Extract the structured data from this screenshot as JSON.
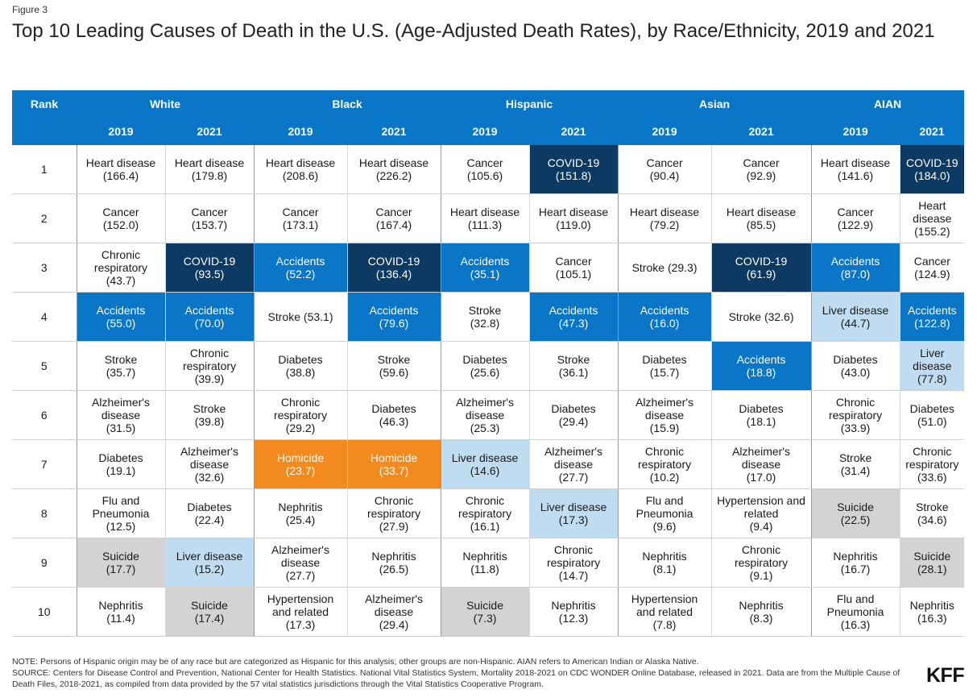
{
  "figure_label": "Figure 3",
  "title": "Top 10 Leading Causes of Death in the U.S. (Age-Adjusted Death Rates), by Race/Ethnicity, 2019 and 2021",
  "colors": {
    "header": "#0a76c8",
    "covid": "#0d3a62",
    "accidents": "#0a76c8",
    "homicide": "#f28a1e",
    "liver": "#bfdcf0",
    "suicide": "#d3d3d3"
  },
  "chart_data": {
    "type": "table",
    "rank_header": "Rank",
    "groups": [
      "White",
      "Black",
      "Hispanic",
      "Asian",
      "AIAN"
    ],
    "years": [
      "2019",
      "2021"
    ],
    "ranks": [
      "1",
      "2",
      "3",
      "4",
      "5",
      "6",
      "7",
      "8",
      "9",
      "10"
    ],
    "rows": [
      [
        {
          "label": "Heart disease",
          "value": "(166.4)"
        },
        {
          "label": "Heart disease",
          "value": "(179.8)"
        },
        {
          "label": "Heart disease",
          "value": "(208.6)"
        },
        {
          "label": "Heart disease",
          "value": "(226.2)"
        },
        {
          "label": "Cancer",
          "value": "(105.6)"
        },
        {
          "label": "COVID-19",
          "value": "(151.8)",
          "hl": "covid"
        },
        {
          "label": "Cancer",
          "value": "(90.4)"
        },
        {
          "label": "Cancer",
          "value": "(92.9)"
        },
        {
          "label": "Heart disease",
          "value": "(141.6)"
        },
        {
          "label": "COVID-19",
          "value": "(184.0)",
          "hl": "covid"
        }
      ],
      [
        {
          "label": "Cancer",
          "value": "(152.0)"
        },
        {
          "label": "Cancer",
          "value": "(153.7)"
        },
        {
          "label": "Cancer",
          "value": "(173.1)"
        },
        {
          "label": "Cancer",
          "value": "(167.4)"
        },
        {
          "label": "Heart disease",
          "value": "(111.3)"
        },
        {
          "label": "Heart disease",
          "value": "(119.0)"
        },
        {
          "label": "Heart disease",
          "value": "(79.2)"
        },
        {
          "label": "Heart disease",
          "value": "(85.5)"
        },
        {
          "label": "Cancer",
          "value": "(122.9)"
        },
        {
          "label": "Heart disease",
          "value": "(155.2)"
        }
      ],
      [
        {
          "label": "Chronic respiratory",
          "value": "(43.7)"
        },
        {
          "label": "COVID-19",
          "value": "(93.5)",
          "hl": "covid"
        },
        {
          "label": "Accidents",
          "value": "(52.2)",
          "hl": "acc"
        },
        {
          "label": "COVID-19",
          "value": "(136.4)",
          "hl": "covid"
        },
        {
          "label": "Accidents",
          "value": "(35.1)",
          "hl": "acc"
        },
        {
          "label": "Cancer",
          "value": "(105.1)"
        },
        {
          "label": "Stroke",
          "value": "(29.3)",
          "inline": true
        },
        {
          "label": "COVID-19",
          "value": "(61.9)",
          "hl": "covid"
        },
        {
          "label": "Accidents",
          "value": "(87.0)",
          "hl": "acc"
        },
        {
          "label": "Cancer",
          "value": "(124.9)"
        }
      ],
      [
        {
          "label": "Accidents",
          "value": "(55.0)",
          "hl": "acc"
        },
        {
          "label": "Accidents",
          "value": "(70.0)",
          "hl": "acc"
        },
        {
          "label": "Stroke",
          "value": "(53.1)",
          "inline": true
        },
        {
          "label": "Accidents",
          "value": "(79.6)",
          "hl": "acc"
        },
        {
          "label": "Stroke",
          "value": "(32.8)"
        },
        {
          "label": "Accidents",
          "value": "(47.3)",
          "hl": "acc"
        },
        {
          "label": "Accidents",
          "value": "(16.0)",
          "hl": "acc"
        },
        {
          "label": "Stroke",
          "value": "(32.6)",
          "inline": true
        },
        {
          "label": "Liver disease",
          "value": "(44.7)",
          "hl": "liver"
        },
        {
          "label": "Accidents",
          "value": "(122.8)",
          "hl": "acc"
        }
      ],
      [
        {
          "label": "Stroke",
          "value": "(35.7)"
        },
        {
          "label": "Chronic respiratory",
          "value": "(39.9)"
        },
        {
          "label": "Diabetes",
          "value": "(38.8)"
        },
        {
          "label": "Stroke",
          "value": "(59.6)"
        },
        {
          "label": "Diabetes",
          "value": "(25.6)"
        },
        {
          "label": "Stroke",
          "value": "(36.1)"
        },
        {
          "label": "Diabetes",
          "value": "(15.7)"
        },
        {
          "label": "Accidents",
          "value": "(18.8)",
          "hl": "acc"
        },
        {
          "label": "Diabetes",
          "value": "(43.0)"
        },
        {
          "label": "Liver disease",
          "value": "(77.8)",
          "hl": "liver"
        }
      ],
      [
        {
          "label": "Alzheimer's disease",
          "value": "(31.5)"
        },
        {
          "label": "Stroke",
          "value": "(39.8)"
        },
        {
          "label": "Chronic respiratory",
          "value": "(29.2)"
        },
        {
          "label": "Diabetes",
          "value": "(46.3)"
        },
        {
          "label": "Alzheimer's disease",
          "value": "(25.3)"
        },
        {
          "label": "Diabetes",
          "value": "(29.4)"
        },
        {
          "label": "Alzheimer's disease",
          "value": "(15.9)"
        },
        {
          "label": "Diabetes",
          "value": "(18.1)"
        },
        {
          "label": "Chronic respiratory",
          "value": "(33.9)"
        },
        {
          "label": "Diabetes",
          "value": "(51.0)"
        }
      ],
      [
        {
          "label": "Diabetes",
          "value": "(19.1)"
        },
        {
          "label": "Alzheimer's disease",
          "value": "(32.6)"
        },
        {
          "label": "Homicide",
          "value": "(23.7)",
          "hl": "hom"
        },
        {
          "label": "Homicide",
          "value": "(33.7)",
          "hl": "hom"
        },
        {
          "label": "Liver disease",
          "value": "(14.6)",
          "hl": "liver"
        },
        {
          "label": "Alzheimer's disease",
          "value": "(27.7)"
        },
        {
          "label": "Chronic respiratory",
          "value": "(10.2)"
        },
        {
          "label": "Alzheimer's disease",
          "value": "(17.0)"
        },
        {
          "label": "Stroke",
          "value": "(31.4)"
        },
        {
          "label": "Chronic respiratory",
          "value": "(33.6)"
        }
      ],
      [
        {
          "label": "Flu and Pneumonia",
          "value": "(12.5)"
        },
        {
          "label": "Diabetes",
          "value": "(22.4)"
        },
        {
          "label": "Nephritis",
          "value": "(25.4)"
        },
        {
          "label": "Chronic respiratory",
          "value": "(27.9)"
        },
        {
          "label": "Chronic respiratory",
          "value": "(16.1)"
        },
        {
          "label": "Liver disease",
          "value": "(17.3)",
          "hl": "liver"
        },
        {
          "label": "Flu and Pneumonia",
          "value": "(9.6)"
        },
        {
          "label": "Hypertension and related",
          "value": "(9.4)"
        },
        {
          "label": "Suicide",
          "value": "(22.5)",
          "hl": "suicide"
        },
        {
          "label": "Stroke",
          "value": "(34.6)"
        }
      ],
      [
        {
          "label": "Suicide",
          "value": "(17.7)",
          "hl": "suicide"
        },
        {
          "label": "Liver disease",
          "value": "(15.2)",
          "hl": "liver"
        },
        {
          "label": "Alzheimer's disease",
          "value": "(27.7)"
        },
        {
          "label": "Nephritis",
          "value": "(26.5)"
        },
        {
          "label": "Nephritis",
          "value": "(11.8)"
        },
        {
          "label": "Chronic respiratory",
          "value": "(14.7)"
        },
        {
          "label": "Nephritis",
          "value": "(8.1)"
        },
        {
          "label": "Chronic respiratory",
          "value": "(9.1)"
        },
        {
          "label": "Nephritis",
          "value": "(16.7)"
        },
        {
          "label": "Suicide",
          "value": "(28.1)",
          "hl": "suicide"
        }
      ],
      [
        {
          "label": "Nephritis",
          "value": "(11.4)"
        },
        {
          "label": "Suicide",
          "value": "(17.4)",
          "hl": "suicide"
        },
        {
          "label": "Hypertension and related",
          "value": "(17.3)"
        },
        {
          "label": "Alzheimer's disease",
          "value": "(29.4)"
        },
        {
          "label": "Suicide",
          "value": "(7.3)",
          "hl": "suicide"
        },
        {
          "label": "Nephritis",
          "value": "(12.3)"
        },
        {
          "label": "Hypertension and related",
          "value": "(7.8)"
        },
        {
          "label": "Nephritis",
          "value": "(8.3)"
        },
        {
          "label": "Flu and Pneumonia",
          "value": "(16.3)"
        },
        {
          "label": "Nephritis",
          "value": "(16.3)"
        }
      ]
    ]
  },
  "notes": {
    "note": "NOTE: Persons of Hispanic origin may be of any race but are categorized as Hispanic for this analysis; other groups are non-Hispanic. AIAN refers to American Indian or Alaska Native.",
    "source": "SOURCE: Centers for Disease Control and Prevention, National Center for Health Statistics. National Vital Statistics System, Mortality 2018-2021 on CDC WONDER Online Database, released in 2021. Data are from the Multiple Cause of Death Files, 2018-2021, as compiled from data provided by the 57 vital statistics jurisdictions through the Vital Statistics Cooperative Program."
  },
  "logo": "KFF"
}
